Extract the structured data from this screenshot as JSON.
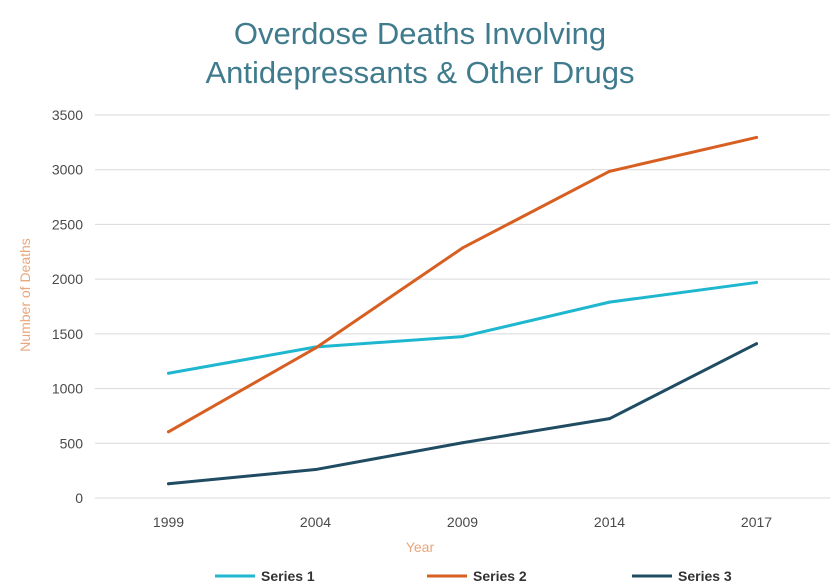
{
  "chart_data": {
    "type": "line",
    "title_line1": "Overdose Deaths Involving",
    "title_line2": "Antidepressants & Other Drugs",
    "xlabel": "Year",
    "ylabel": "Number of Deaths",
    "categories": [
      "1999",
      "2004",
      "2009",
      "2014",
      "2017"
    ],
    "ylim": [
      0,
      3500
    ],
    "yticks": [
      0,
      500,
      1000,
      1500,
      2000,
      2500,
      3000,
      3500
    ],
    "grid": "horizontal",
    "legend_position": "bottom",
    "series": [
      {
        "name": "Series 1",
        "color": "#1fb7d0",
        "values": [
          1140,
          1380,
          1475,
          1790,
          1970
        ]
      },
      {
        "name": "Series 2",
        "color": "#d85f22",
        "values": [
          605,
          1370,
          2285,
          2985,
          3295
        ]
      },
      {
        "name": "Series 3",
        "color": "#1f4c63",
        "values": [
          130,
          260,
          505,
          725,
          1410
        ]
      }
    ]
  }
}
